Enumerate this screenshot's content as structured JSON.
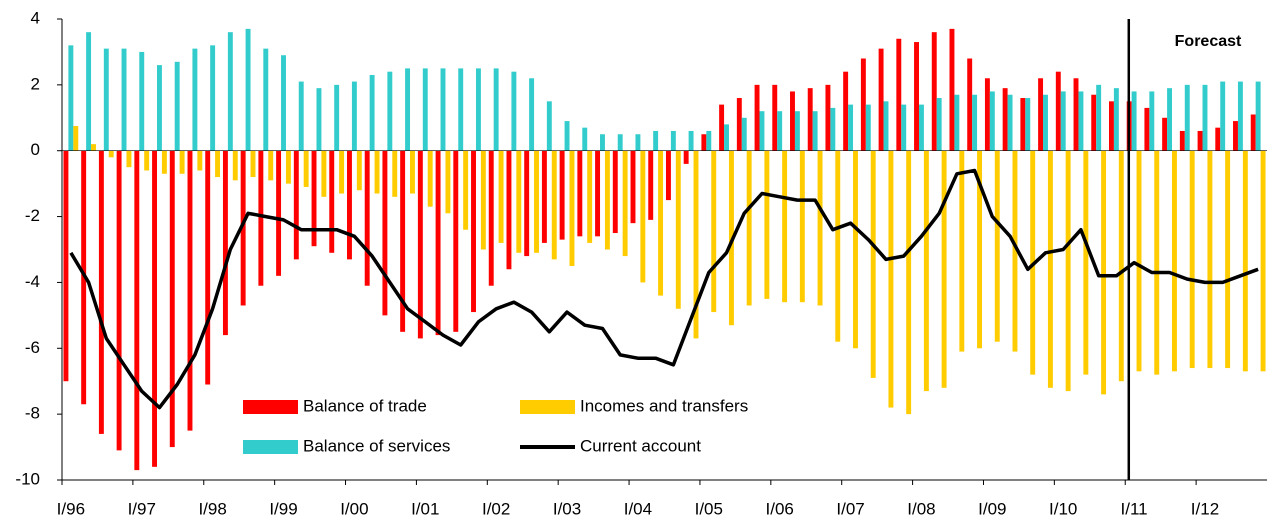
{
  "chart_data": {
    "type": "bar",
    "categories": [
      "I/96",
      null,
      null,
      null,
      "I/97",
      null,
      null,
      null,
      "I/98",
      null,
      null,
      null,
      "I/99",
      null,
      null,
      null,
      "I/00",
      null,
      null,
      null,
      "I/01",
      null,
      null,
      null,
      "I/02",
      null,
      null,
      null,
      "I/03",
      null,
      null,
      null,
      "I/04",
      null,
      null,
      null,
      "I/05",
      null,
      null,
      null,
      "I/06",
      null,
      null,
      null,
      "I/07",
      null,
      null,
      null,
      "I/08",
      null,
      null,
      null,
      "I/09",
      null,
      null,
      null,
      "I/10",
      null,
      null,
      null,
      "I/11",
      null,
      null,
      null,
      "I/12",
      null,
      null,
      null
    ],
    "series": [
      {
        "name": "Balance of trade",
        "color": "#ff0000",
        "type": "bar",
        "values": [
          -7.0,
          -7.7,
          -8.6,
          -9.1,
          -9.7,
          -9.6,
          -9.0,
          -8.5,
          -7.1,
          -5.6,
          -4.7,
          -4.1,
          -3.8,
          -3.3,
          -2.9,
          -3.1,
          -3.3,
          -4.1,
          -5.0,
          -5.5,
          -5.7,
          -5.6,
          -5.5,
          -4.9,
          -4.1,
          -3.6,
          -3.2,
          -2.8,
          -2.7,
          -2.6,
          -2.6,
          -2.5,
          -2.2,
          -2.1,
          -1.5,
          -0.4,
          0.5,
          1.4,
          1.6,
          2.0,
          2.0,
          1.8,
          1.9,
          2.0,
          2.4,
          2.8,
          3.1,
          3.4,
          3.3,
          3.6,
          3.7,
          2.8,
          2.2,
          1.9,
          1.6,
          2.2,
          2.4,
          2.2,
          1.7,
          1.5,
          1.5,
          1.3,
          1.0,
          0.6,
          0.6,
          0.7,
          0.9,
          1.1
        ]
      },
      {
        "name": "Balance of services",
        "color": "#33cccc",
        "type": "bar",
        "values": [
          3.2,
          3.6,
          3.1,
          3.1,
          3.0,
          2.6,
          2.7,
          3.1,
          3.2,
          3.6,
          3.7,
          3.1,
          2.9,
          2.1,
          1.9,
          2.0,
          2.1,
          2.3,
          2.4,
          2.5,
          2.5,
          2.5,
          2.5,
          2.5,
          2.5,
          2.4,
          2.2,
          1.5,
          0.9,
          0.7,
          0.5,
          0.5,
          0.5,
          0.6,
          0.6,
          0.6,
          0.6,
          0.8,
          1.0,
          1.2,
          1.2,
          1.2,
          1.2,
          1.3,
          1.4,
          1.4,
          1.5,
          1.4,
          1.4,
          1.6,
          1.7,
          1.7,
          1.8,
          1.7,
          1.6,
          1.7,
          1.8,
          1.8,
          2.0,
          1.9,
          1.8,
          1.8,
          1.9,
          2.0,
          2.0,
          2.1,
          2.1,
          2.1
        ]
      },
      {
        "name": "Incomes and transfers",
        "color": "#ffcc00",
        "type": "bar",
        "values": [
          0.75,
          0.2,
          -0.2,
          -0.5,
          -0.6,
          -0.7,
          -0.7,
          -0.6,
          -0.8,
          -0.9,
          -0.8,
          -0.9,
          -1.0,
          -1.1,
          -1.4,
          -1.3,
          -1.2,
          -1.3,
          -1.4,
          -1.3,
          -1.7,
          -1.9,
          -2.4,
          -3.0,
          -2.8,
          -3.1,
          -3.1,
          -3.3,
          -3.5,
          -2.8,
          -3.0,
          -3.2,
          -4.0,
          -4.4,
          -4.8,
          -5.7,
          -4.9,
          -5.3,
          -4.7,
          -4.5,
          -4.6,
          -4.6,
          -4.7,
          -5.8,
          -6.0,
          -6.9,
          -7.8,
          -8.0,
          -7.3,
          -7.2,
          -6.1,
          -6.0,
          -5.8,
          -6.1,
          -6.8,
          -7.2,
          -7.3,
          -6.8,
          -7.4,
          -7.0,
          -6.7,
          -6.8,
          -6.7,
          -6.6,
          -6.6,
          -6.6,
          -6.7,
          -6.7
        ]
      },
      {
        "name": "Current account",
        "color": "#000000",
        "type": "line",
        "values": [
          -3.1,
          -4.0,
          -5.7,
          -6.5,
          -7.3,
          -7.8,
          -7.1,
          -6.2,
          -4.8,
          -3.0,
          -1.9,
          -2.0,
          -2.1,
          -2.4,
          -2.4,
          -2.4,
          -2.6,
          -3.2,
          -4.0,
          -4.8,
          -5.2,
          -5.6,
          -5.9,
          -5.2,
          -4.8,
          -4.6,
          -4.9,
          -5.5,
          -4.9,
          -5.3,
          -5.4,
          -6.2,
          -6.3,
          -6.3,
          -6.5,
          -5.1,
          -3.7,
          -3.1,
          -1.9,
          -1.3,
          -1.4,
          -1.5,
          -1.5,
          -2.4,
          -2.2,
          -2.7,
          -3.3,
          -3.2,
          -2.6,
          -1.9,
          -0.7,
          -0.6,
          -2.0,
          -2.6,
          -3.6,
          -3.1,
          -3.0,
          -2.4,
          -3.8,
          -3.8,
          -3.4,
          -3.7,
          -3.7,
          -3.9,
          -4.0,
          -4.0,
          -3.8,
          -3.6
        ]
      }
    ],
    "ylim": [
      -10,
      4
    ],
    "yticks": [
      -10,
      -8,
      -6,
      -4,
      -2,
      0,
      2,
      4
    ],
    "grid": false,
    "annotation": {
      "text": "Forecast",
      "x": "I/11"
    }
  }
}
